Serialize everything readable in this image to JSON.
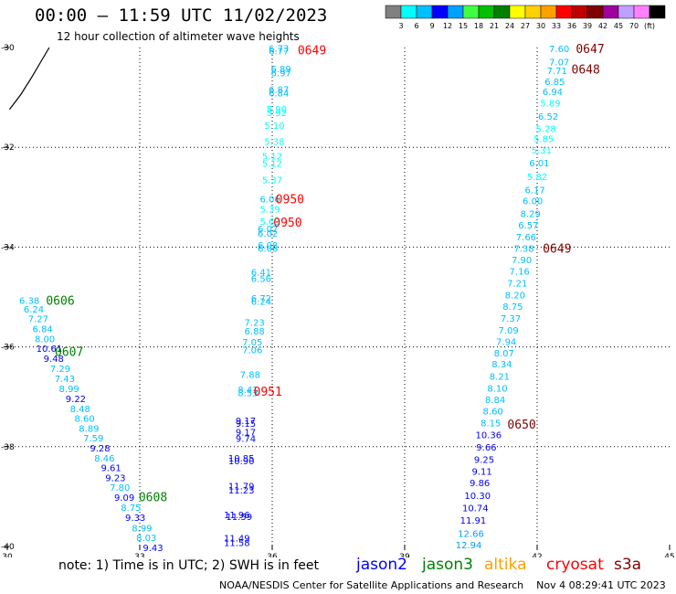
{
  "header": {
    "title": "00:00 – 11:59 UTC 11/02/2023",
    "subtitle": "12 hour collection of altimeter wave heights"
  },
  "legend": {
    "colors": [
      "#808080",
      "#00ffff",
      "#00c0ff",
      "#0000ff",
      "#00a0ff",
      "#40ff40",
      "#00c000",
      "#008000",
      "#ffff00",
      "#ffd000",
      "#ffa000",
      "#ff0000",
      "#c00000",
      "#800000",
      "#a000a0",
      "#c0a0ff",
      "#ff80ff",
      "#000000"
    ],
    "labels": [
      "3",
      "6",
      "9",
      "12",
      "15",
      "18",
      "21",
      "24",
      "27",
      "30",
      "33",
      "36",
      "39",
      "42",
      "45",
      "70",
      "(ft)"
    ]
  },
  "chart_data": {
    "type": "scatter",
    "xlim": [
      30,
      45
    ],
    "ylim": [
      -40,
      -30
    ],
    "x_ticks": [
      "30",
      "33",
      "36",
      "39",
      "42",
      "45"
    ],
    "y_ticks": [
      "-30",
      "-32",
      "-34",
      "-36",
      "-38",
      "-40"
    ],
    "grid": true,
    "series": [
      {
        "name": "jason3",
        "points": [
          {
            "lon": 30.5,
            "lat": -35.06,
            "swh": "6.38"
          },
          {
            "lon": 30.6,
            "lat": -35.24,
            "swh": "6.24"
          },
          {
            "lon": 30.7,
            "lat": -35.43,
            "swh": "7.27"
          },
          {
            "lon": 30.8,
            "lat": -35.63,
            "swh": "6.84"
          },
          {
            "lon": 30.85,
            "lat": -35.83,
            "swh": "8.00"
          },
          {
            "lon": 30.95,
            "lat": -36.03,
            "swh": "10.61"
          },
          {
            "lon": 31.05,
            "lat": -36.23,
            "swh": "9.48"
          },
          {
            "lon": 31.2,
            "lat": -36.43,
            "swh": "7.29"
          },
          {
            "lon": 31.3,
            "lat": -36.63,
            "swh": "7.43"
          },
          {
            "lon": 31.4,
            "lat": -36.83,
            "swh": "8.99"
          },
          {
            "lon": 31.55,
            "lat": -37.03,
            "swh": "9.22"
          },
          {
            "lon": 31.65,
            "lat": -37.23,
            "swh": "8.48"
          },
          {
            "lon": 31.75,
            "lat": -37.43,
            "swh": "8.60"
          },
          {
            "lon": 31.85,
            "lat": -37.63,
            "swh": "8.89"
          },
          {
            "lon": 31.95,
            "lat": -37.82,
            "swh": "7.59"
          },
          {
            "lon": 32.1,
            "lat": -38.02,
            "swh": "9.28"
          },
          {
            "lon": 32.2,
            "lat": -38.22,
            "swh": "8.46"
          },
          {
            "lon": 32.35,
            "lat": -38.42,
            "swh": "9.61"
          },
          {
            "lon": 32.45,
            "lat": -38.62,
            "swh": "9.23"
          },
          {
            "lon": 32.55,
            "lat": -38.81,
            "swh": "7.80"
          },
          {
            "lon": 32.65,
            "lat": -39.01,
            "swh": "9.09"
          },
          {
            "lon": 32.8,
            "lat": -39.21,
            "swh": "8.75"
          },
          {
            "lon": 32.9,
            "lat": -39.41,
            "swh": "9.33"
          },
          {
            "lon": 33.05,
            "lat": -39.62,
            "swh": "8.99"
          },
          {
            "lon": 33.15,
            "lat": -39.82,
            "swh": "8.03"
          },
          {
            "lon": 33.3,
            "lat": -40.02,
            "swh": "9.43"
          }
        ]
      },
      {
        "name": "cryosat",
        "points": [
          {
            "lon": 36.15,
            "lat": -30.01,
            "swh": "6.73"
          },
          {
            "lon": 36.15,
            "lat": -30.06,
            "swh": "6.77"
          },
          {
            "lon": 36.2,
            "lat": -30.42,
            "swh": "6.89"
          },
          {
            "lon": 36.2,
            "lat": -30.5,
            "swh": "6.97"
          },
          {
            "lon": 36.15,
            "lat": -30.83,
            "swh": "6.87"
          },
          {
            "lon": 36.15,
            "lat": -30.91,
            "swh": "6.84"
          },
          {
            "lon": 36.1,
            "lat": -31.23,
            "swh": "5.90"
          },
          {
            "lon": 36.1,
            "lat": -31.3,
            "swh": "5.92"
          },
          {
            "lon": 36.05,
            "lat": -31.56,
            "swh": "5.10"
          },
          {
            "lon": 36.05,
            "lat": -31.88,
            "swh": "5.38"
          },
          {
            "lon": 36.0,
            "lat": -32.17,
            "swh": "5.12"
          },
          {
            "lon": 36.0,
            "lat": -32.32,
            "swh": "5.12"
          },
          {
            "lon": 36.0,
            "lat": -32.65,
            "swh": "5.37"
          },
          {
            "lon": 35.95,
            "lat": -33.03,
            "swh": "6.06"
          },
          {
            "lon": 35.95,
            "lat": -33.23,
            "swh": "5.39"
          },
          {
            "lon": 35.95,
            "lat": -33.48,
            "swh": "5.63"
          },
          {
            "lon": 35.9,
            "lat": -33.63,
            "swh": "6.02"
          },
          {
            "lon": 35.9,
            "lat": -33.72,
            "swh": "6.02"
          },
          {
            "lon": 35.9,
            "lat": -33.96,
            "swh": "6.08"
          },
          {
            "lon": 35.9,
            "lat": -34.02,
            "swh": "6.06"
          },
          {
            "lon": 35.75,
            "lat": -34.5,
            "swh": "6.41"
          },
          {
            "lon": 35.75,
            "lat": -34.62,
            "swh": "6.56"
          },
          {
            "lon": 35.75,
            "lat": -35.02,
            "swh": "6.72"
          },
          {
            "lon": 35.75,
            "lat": -35.08,
            "swh": "6.24"
          },
          {
            "lon": 35.6,
            "lat": -35.5,
            "swh": "7.23"
          },
          {
            "lon": 35.6,
            "lat": -35.68,
            "swh": "6.88"
          },
          {
            "lon": 35.55,
            "lat": -35.9,
            "swh": "7.05"
          },
          {
            "lon": 35.55,
            "lat": -36.05,
            "swh": "7.06"
          },
          {
            "lon": 35.5,
            "lat": -36.55,
            "swh": "7.88"
          },
          {
            "lon": 35.45,
            "lat": -36.85,
            "swh": "8.41"
          },
          {
            "lon": 35.45,
            "lat": -36.91,
            "swh": "8.53"
          }
        ]
      },
      {
        "name": "jason2",
        "points": [
          {
            "lon": 35.4,
            "lat": -37.47,
            "swh": "9.17"
          },
          {
            "lon": 35.4,
            "lat": -37.53,
            "swh": "9.15"
          },
          {
            "lon": 35.4,
            "lat": -37.7,
            "swh": "9.17"
          },
          {
            "lon": 35.4,
            "lat": -37.83,
            "swh": "9.74"
          },
          {
            "lon": 35.3,
            "lat": -38.22,
            "swh": "10.85"
          },
          {
            "lon": 35.3,
            "lat": -38.28,
            "swh": "10.90"
          },
          {
            "lon": 35.3,
            "lat": -38.78,
            "swh": "11.79"
          },
          {
            "lon": 35.3,
            "lat": -38.86,
            "swh": "11.23"
          },
          {
            "lon": 35.2,
            "lat": -39.36,
            "swh": "11.96"
          },
          {
            "lon": 35.25,
            "lat": -39.4,
            "swh": "11.59"
          },
          {
            "lon": 35.2,
            "lat": -39.83,
            "swh": "11.49"
          },
          {
            "lon": 35.2,
            "lat": -39.92,
            "swh": "11.58"
          }
        ]
      },
      {
        "name": "s3a",
        "points": [
          {
            "lon": 42.5,
            "lat": -30.02,
            "swh": "7.60"
          },
          {
            "lon": 42.5,
            "lat": -30.28,
            "swh": "7.07"
          },
          {
            "lon": 42.45,
            "lat": -30.46,
            "swh": "7.71"
          },
          {
            "lon": 42.4,
            "lat": -30.68,
            "swh": "6.85"
          },
          {
            "lon": 42.35,
            "lat": -30.88,
            "swh": "6.94"
          },
          {
            "lon": 42.3,
            "lat": -31.11,
            "swh": "5.89"
          },
          {
            "lon": 42.25,
            "lat": -31.37,
            "swh": "6.52"
          },
          {
            "lon": 42.2,
            "lat": -31.62,
            "swh": "5.28"
          },
          {
            "lon": 42.15,
            "lat": -31.82,
            "swh": "5.85"
          },
          {
            "lon": 42.1,
            "lat": -32.05,
            "swh": "5.31"
          },
          {
            "lon": 42.05,
            "lat": -32.31,
            "swh": "6.01"
          },
          {
            "lon": 42.0,
            "lat": -32.58,
            "swh": "5.82"
          },
          {
            "lon": 41.95,
            "lat": -32.85,
            "swh": "6.17"
          },
          {
            "lon": 41.9,
            "lat": -33.07,
            "swh": "6.00"
          },
          {
            "lon": 41.85,
            "lat": -33.32,
            "swh": "8.29"
          },
          {
            "lon": 41.8,
            "lat": -33.55,
            "swh": "6.57"
          },
          {
            "lon": 41.75,
            "lat": -33.79,
            "swh": "7.66"
          },
          {
            "lon": 41.7,
            "lat": -34.02,
            "swh": "7.38"
          },
          {
            "lon": 41.65,
            "lat": -34.25,
            "swh": "7.90"
          },
          {
            "lon": 41.6,
            "lat": -34.48,
            "swh": "7.16"
          },
          {
            "lon": 41.55,
            "lat": -34.72,
            "swh": "7.21"
          },
          {
            "lon": 41.5,
            "lat": -34.95,
            "swh": "8.20"
          },
          {
            "lon": 41.45,
            "lat": -35.18,
            "swh": "8.75"
          },
          {
            "lon": 41.4,
            "lat": -35.42,
            "swh": "7.37"
          },
          {
            "lon": 41.35,
            "lat": -35.66,
            "swh": "7.09"
          },
          {
            "lon": 41.3,
            "lat": -35.89,
            "swh": "7.94"
          },
          {
            "lon": 41.25,
            "lat": -36.12,
            "swh": "8.07"
          },
          {
            "lon": 41.2,
            "lat": -36.34,
            "swh": "8.34"
          },
          {
            "lon": 41.15,
            "lat": -36.58,
            "swh": "8.21"
          },
          {
            "lon": 41.1,
            "lat": -36.82,
            "swh": "8.10"
          },
          {
            "lon": 41.05,
            "lat": -37.05,
            "swh": "8.84"
          },
          {
            "lon": 41.0,
            "lat": -37.28,
            "swh": "8.60"
          },
          {
            "lon": 40.95,
            "lat": -37.52,
            "swh": "8.15"
          },
          {
            "lon": 40.9,
            "lat": -37.76,
            "swh": "10.36"
          },
          {
            "lon": 40.85,
            "lat": -38.0,
            "swh": "9.66"
          },
          {
            "lon": 40.8,
            "lat": -38.25,
            "swh": "9.25"
          },
          {
            "lon": 40.75,
            "lat": -38.49,
            "swh": "9.11"
          },
          {
            "lon": 40.7,
            "lat": -38.72,
            "swh": "9.86"
          },
          {
            "lon": 40.65,
            "lat": -38.97,
            "swh": "10.30"
          },
          {
            "lon": 40.6,
            "lat": -39.22,
            "swh": "10.74"
          },
          {
            "lon": 40.55,
            "lat": -39.47,
            "swh": "11.91"
          },
          {
            "lon": 40.5,
            "lat": -39.73,
            "swh": "12.66"
          },
          {
            "lon": 40.45,
            "lat": -39.96,
            "swh": "12.94"
          }
        ]
      }
    ],
    "pass_times": [
      {
        "label": "0649",
        "lon": 36.9,
        "lat": -30.05,
        "color": "#ff0000"
      },
      {
        "label": "0950",
        "lon": 36.4,
        "lat": -33.03,
        "color": "#ff0000"
      },
      {
        "label": "0950",
        "lon": 36.35,
        "lat": -33.5,
        "color": "#ff0000"
      },
      {
        "label": "0951",
        "lon": 35.9,
        "lat": -36.89,
        "color": "#ff0000"
      },
      {
        "label": "0606",
        "lon": 31.2,
        "lat": -35.06,
        "color": "#008000"
      },
      {
        "label": "0607",
        "lon": 31.4,
        "lat": -36.09,
        "color": "#008000"
      },
      {
        "label": "0608",
        "lon": 33.3,
        "lat": -39.0,
        "color": "#008000"
      },
      {
        "label": "0647",
        "lon": 43.2,
        "lat": -30.02,
        "color": "#800000"
      },
      {
        "label": "0648",
        "lon": 43.1,
        "lat": -30.43,
        "color": "#800000"
      },
      {
        "label": "0649",
        "lon": 42.45,
        "lat": -34.02,
        "color": "#800000"
      },
      {
        "label": "0650",
        "lon": 41.65,
        "lat": -37.55,
        "color": "#800000"
      }
    ],
    "coastline": [
      [
        30.05,
        -31.24
      ],
      [
        30.3,
        -30.95
      ],
      [
        30.55,
        -30.6
      ],
      [
        30.75,
        -30.3
      ],
      [
        30.95,
        -30.0
      ]
    ]
  },
  "notes": {
    "text": "note: 1) Time is in UTC; 2) SWH is in feet",
    "satellites": [
      {
        "name": "jason2",
        "color": "#0000ff"
      },
      {
        "name": "jason3",
        "color": "#008000"
      },
      {
        "name": "altika",
        "color": "#ffa000"
      },
      {
        "name": "cryosat",
        "color": "#ff0000"
      },
      {
        "name": "s3a",
        "color": "#800000"
      }
    ]
  },
  "footer": {
    "credit": "NOAA/NESDIS Center for Satellite Applications and Research",
    "timestamp": "Nov  4 08:29:41 UTC 2023"
  }
}
